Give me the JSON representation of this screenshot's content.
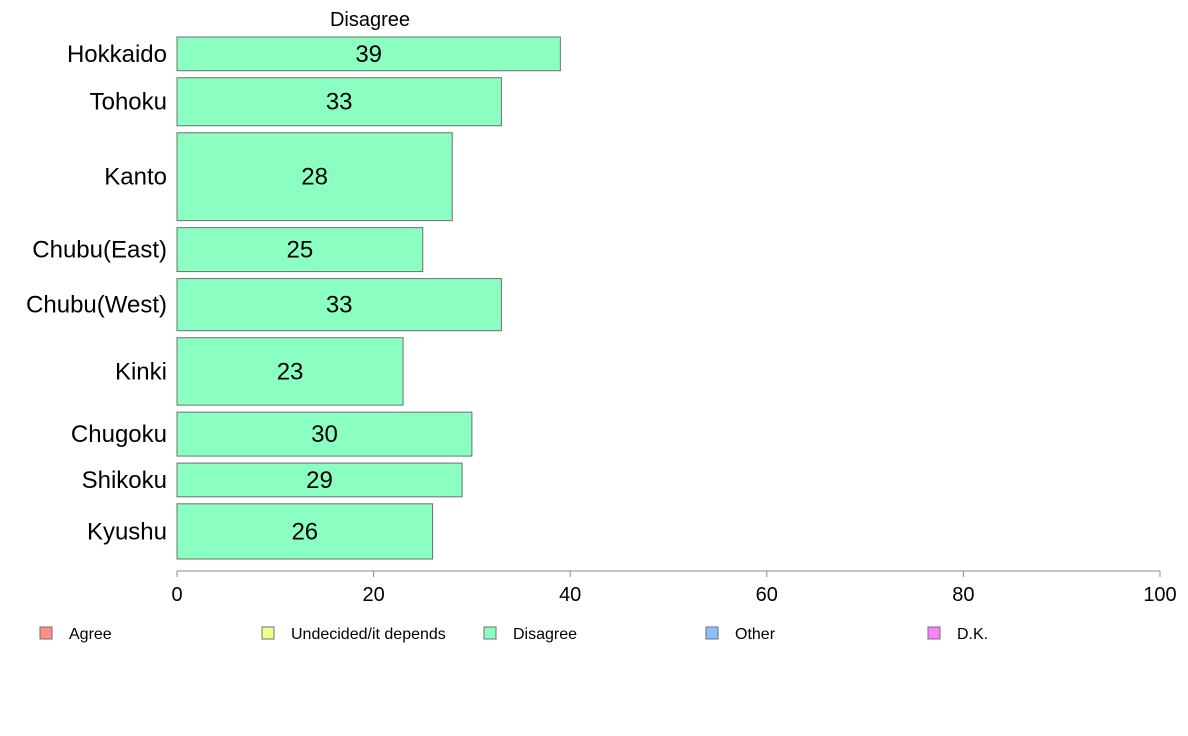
{
  "chart_data": {
    "type": "bar",
    "orientation": "horizontal",
    "title": "Disagree",
    "categories": [
      "Hokkaido",
      "Tohoku",
      "Kanto",
      "Chubu(East)",
      "Chubu(West)",
      "Kinki",
      "Chugoku",
      "Shikoku",
      "Kyushu"
    ],
    "series": [
      {
        "name": "Disagree",
        "values": [
          39,
          33,
          28,
          25,
          33,
          23,
          30,
          29,
          26
        ]
      }
    ],
    "bar_relative_heights": [
      33,
      47,
      86,
      43,
      51,
      66,
      43,
      33,
      54
    ],
    "xlim": [
      0,
      100
    ],
    "xticks": [
      0,
      20,
      40,
      60,
      80,
      100
    ],
    "bar_color": "#8affc1",
    "grid": false,
    "legend": {
      "placement": "bottom",
      "entries": [
        {
          "label": "Agree",
          "color": "#ff8f88"
        },
        {
          "label": "Undecided/it depends",
          "color": "#eeff8f"
        },
        {
          "label": "Disagree",
          "color": "#8affc1"
        },
        {
          "label": "Other",
          "color": "#8fbfff"
        },
        {
          "label": "D.K.",
          "color": "#ff80ff"
        }
      ]
    }
  }
}
